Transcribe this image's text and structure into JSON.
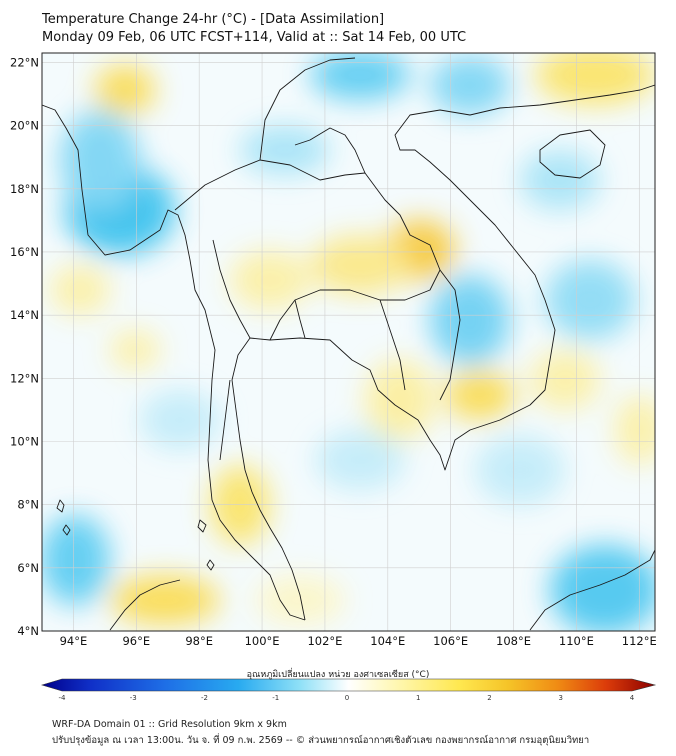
{
  "header": {
    "title_line1": "Temperature Change 24-hr (°C) - [Data Assimilation]",
    "title_line2": "Monday 09 Feb, 06 UTC FCST+114, Valid at :: Sat 14 Feb, 00 UTC"
  },
  "map": {
    "lat_labels": [
      "22°N",
      "20°N",
      "18°N",
      "16°N",
      "14°N",
      "12°N",
      "10°N",
      "8°N",
      "6°N",
      "4°N"
    ],
    "lon_labels": [
      "94°E",
      "96°E",
      "98°E",
      "100°E",
      "102°E",
      "104°E",
      "106°E",
      "108°E",
      "110°E",
      "112°E"
    ],
    "lon_range": [
      93,
      112.5
    ],
    "lat_range": [
      4,
      22.3
    ]
  },
  "colorbar": {
    "label": "อุณหภูมิเปลี่ยนแปลง หน่วย องศาเซลเซียส (°C)",
    "ticks": [
      "-4",
      "-3",
      "-2",
      "-1",
      "0",
      "1",
      "2",
      "3",
      "4"
    ],
    "range": [
      -4,
      4
    ],
    "colors": [
      "#00008b",
      "#1030c8",
      "#1e6ee6",
      "#28aaf0",
      "#64d2f5",
      "#c8f0fa",
      "#ffffff",
      "#fffac8",
      "#fff064",
      "#f5c828",
      "#f08c14",
      "#dc3c0a",
      "#8b0000"
    ]
  },
  "footer": {
    "line1": "WRF-DA Domain 01 :: Grid Resolution 9km x 9km",
    "line2": "ปรับปรุงข้อมูล ณ เวลา 13:00น. วัน จ. ที่ 09 ก.พ. 2569 -- © ส่วนพยากรณ์อากาศเชิงตัวเลข กองพยากรณ์อากาศ กรมอุตุนิยมวิทยา"
  }
}
